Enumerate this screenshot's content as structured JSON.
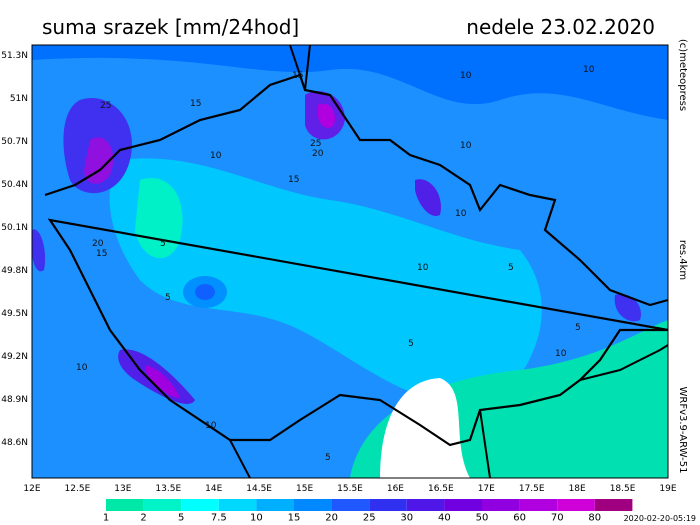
{
  "header": {
    "title": "suma srazek [mm/24hod]",
    "date": "nedele 23.02.2020"
  },
  "map": {
    "lat_labels": [
      "51.3N",
      "51N",
      "50.7N",
      "50.4N",
      "50.1N",
      "49.8N",
      "49.5N",
      "49.2N",
      "48.9N",
      "48.6N"
    ],
    "lon_labels": [
      "12E",
      "12.5E",
      "13E",
      "13.5E",
      "14E",
      "14.5E",
      "15E",
      "15.5E",
      "16E",
      "16.5E",
      "17E",
      "17.5E",
      "18E",
      "18.5E",
      "19E"
    ],
    "contour_labels": [
      "15",
      "10",
      "10",
      "25",
      "15",
      "10",
      "25",
      "20",
      "15",
      "10",
      "10",
      "20",
      "15",
      "5",
      "10",
      "5",
      "5",
      "10",
      "10",
      "5",
      "5",
      "10",
      "5"
    ]
  },
  "legend": {
    "colors": [
      "#ffffff",
      "#00e8a8",
      "#00f4c8",
      "#00ffff",
      "#00d8ff",
      "#00b0ff",
      "#0088ff",
      "#2058ff",
      "#3030f0",
      "#5018e8",
      "#7000e0",
      "#9000e0",
      "#b000e0",
      "#d000d8",
      "#a00080"
    ],
    "labels": [
      "1",
      "2",
      "5",
      "7.5",
      "10",
      "15",
      "20",
      "25",
      "30",
      "40",
      "50",
      "60",
      "70",
      "80"
    ]
  },
  "side": {
    "credit": "(c)meteopress",
    "resolution": "res.4km",
    "model": "WRFv3.9-ARW-51"
  },
  "footer": {
    "timestamp": "2020-02-20-05:19"
  }
}
